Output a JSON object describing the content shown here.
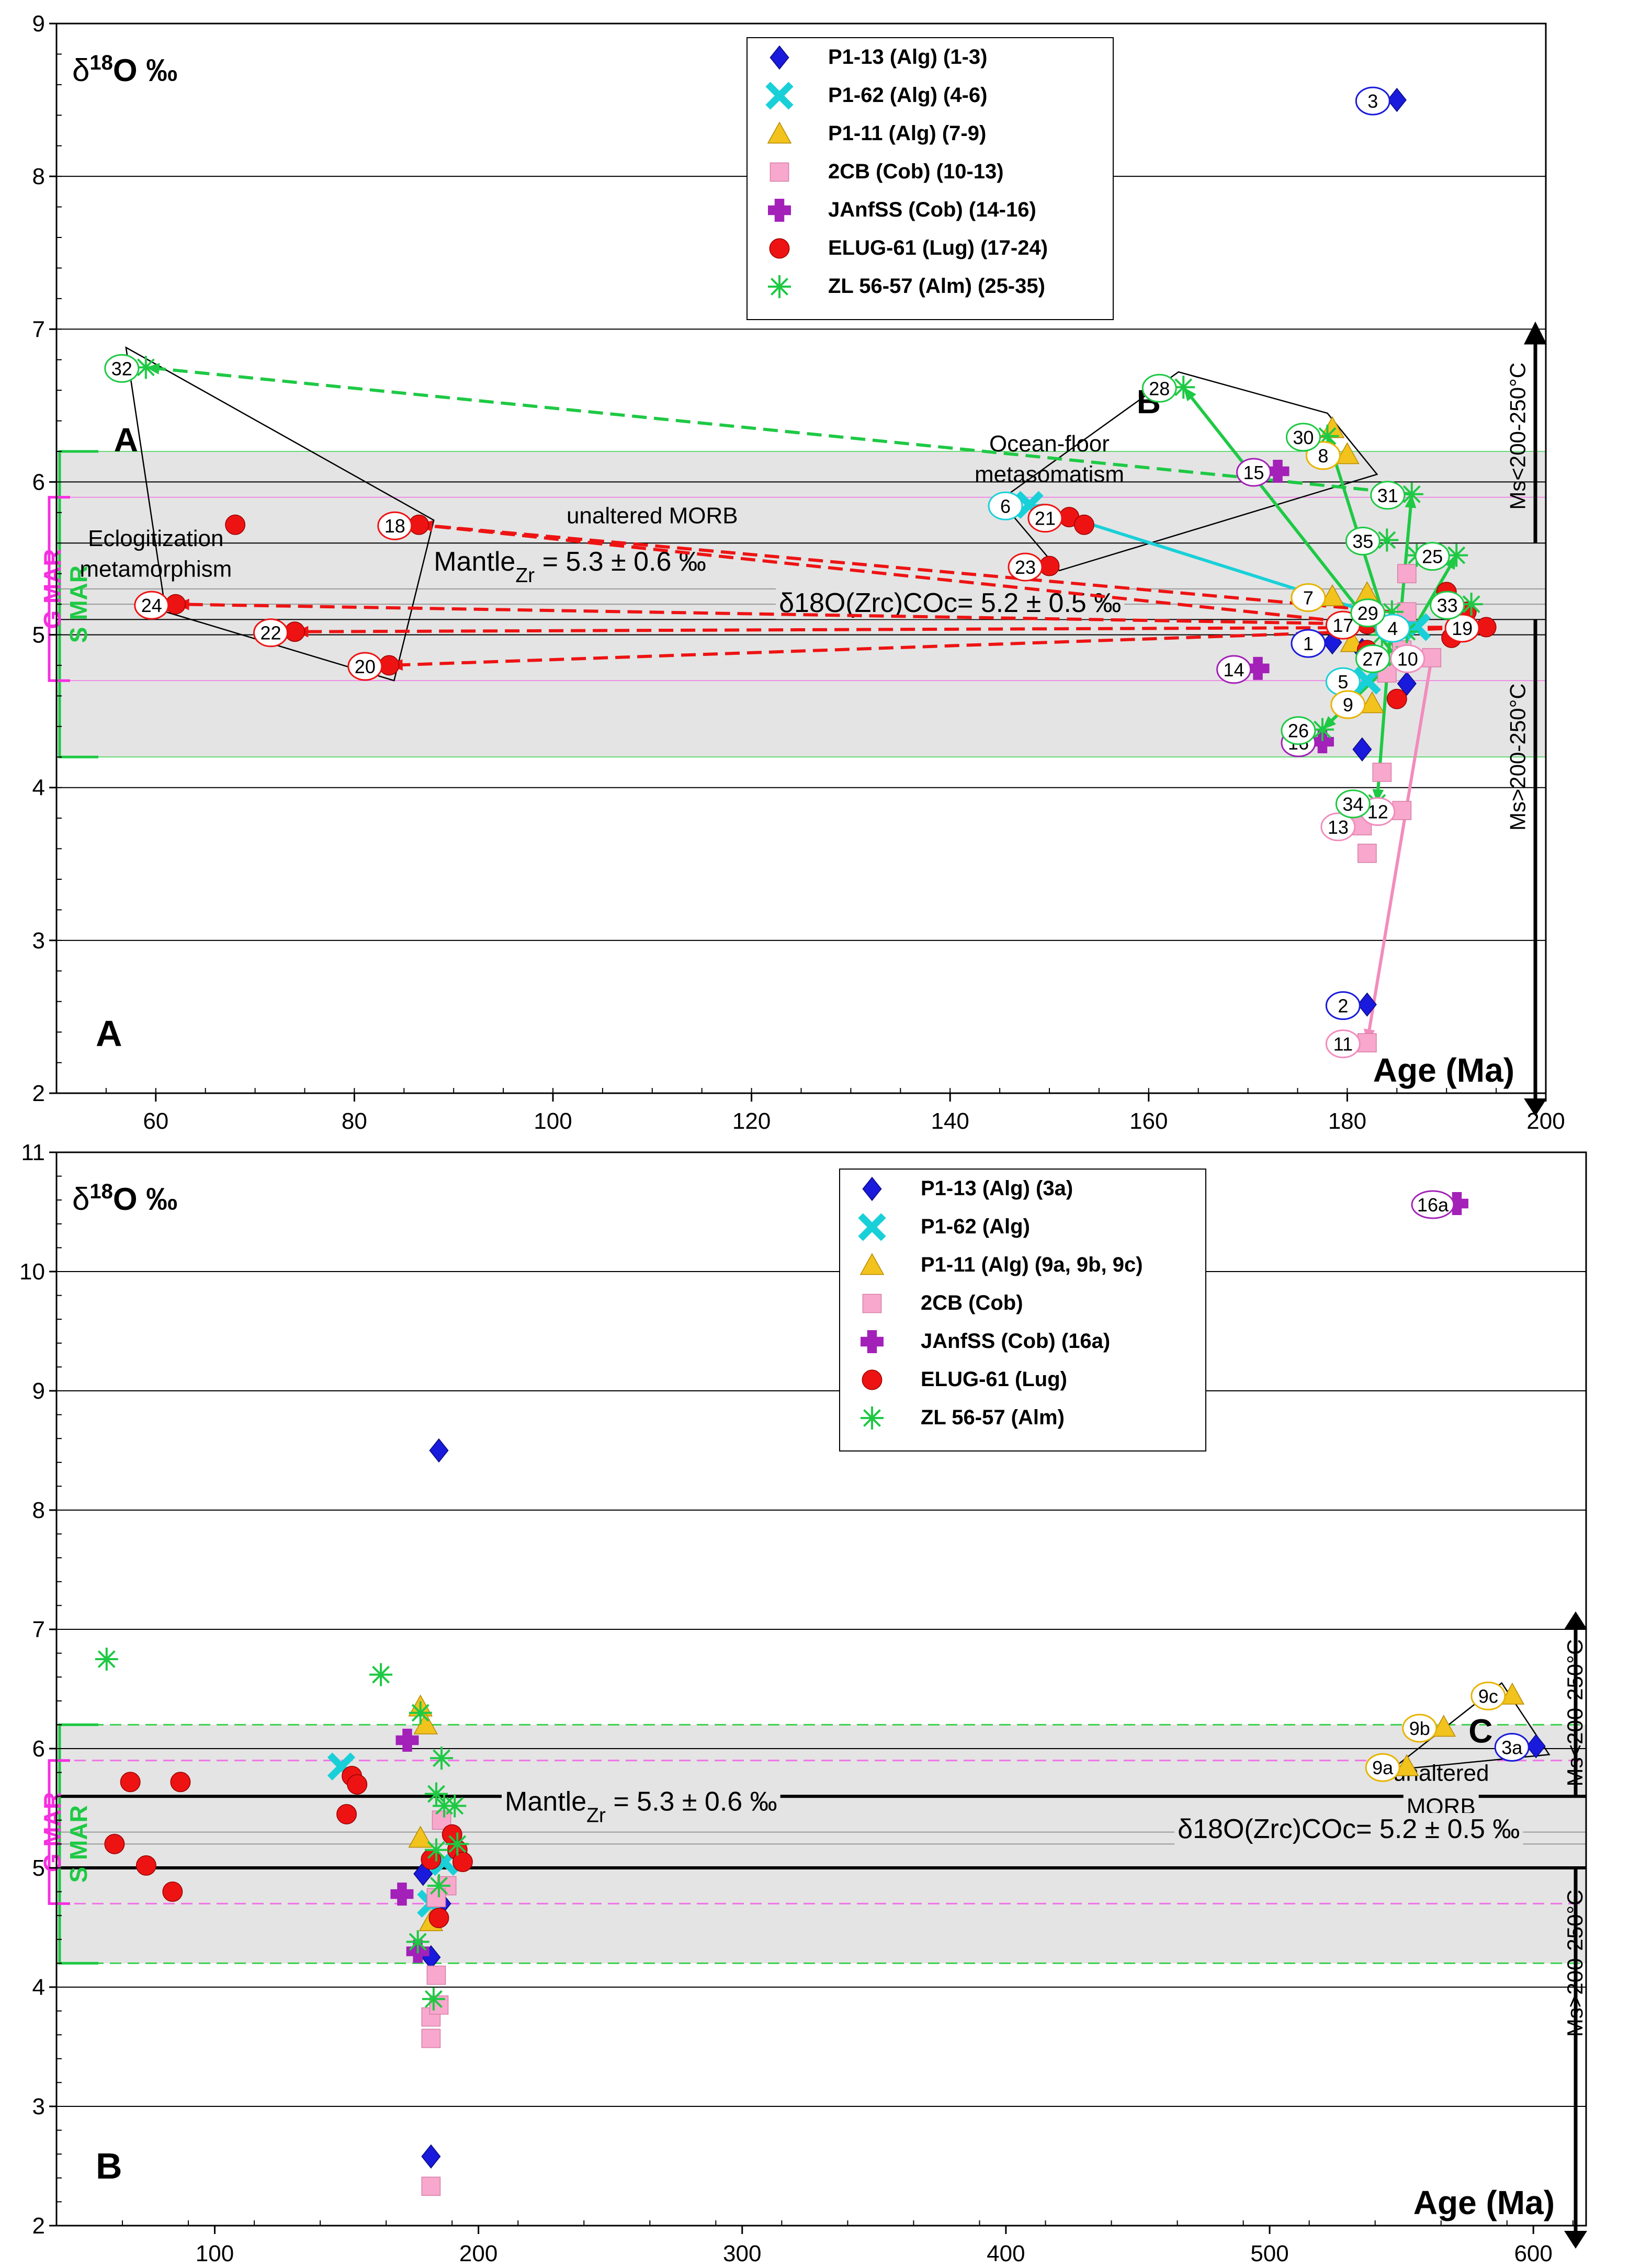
{
  "chart_data": [
    {
      "panel": "A",
      "type": "scatter",
      "panel_label": "A",
      "ylabel": "δ18O ‰",
      "xlabel": "Age (Ma)",
      "xlim": [
        50,
        200
      ],
      "ylim": [
        2,
        9
      ],
      "xticks": [
        "60",
        "80",
        "100",
        "120",
        "140",
        "160",
        "180",
        "200"
      ],
      "yticks": [
        "2",
        "3",
        "4",
        "5",
        "6",
        "7",
        "8",
        "9"
      ],
      "grid": "horizontal",
      "legend_position": "top-center",
      "series": [
        {
          "name": "P1-13 (Alg) (1-3)",
          "marker": "diamond",
          "color": "#1a1adc",
          "points": [
            {
              "x": 178.5,
              "y": 4.95,
              "label": "1"
            },
            {
              "x": 182,
              "y": 2.58,
              "label": "2"
            },
            {
              "x": 185,
              "y": 8.5,
              "label": "3"
            },
            {
              "x": 181.5,
              "y": 4.25
            },
            {
              "x": 186,
              "y": 4.68
            },
            {
              "x": 181.5,
              "y": 4.9
            }
          ]
        },
        {
          "name": "P1-62 (Alg) (4-6)",
          "marker": "x",
          "color": "#19d0d8",
          "points": [
            {
              "x": 187,
              "y": 5.05,
              "label": "4"
            },
            {
              "x": 182,
              "y": 4.7,
              "label": "5"
            },
            {
              "x": 148,
              "y": 5.85,
              "label": "6"
            }
          ]
        },
        {
          "name": "P1-11 (Alg) (7-9)",
          "marker": "triangle",
          "color": "#f2c21d",
          "points": [
            {
              "x": 178.5,
              "y": 5.25,
              "label": "7"
            },
            {
              "x": 180,
              "y": 6.18,
              "label": "8"
            },
            {
              "x": 182.5,
              "y": 4.55,
              "label": "9"
            },
            {
              "x": 178.5,
              "y": 6.35
            },
            {
              "x": 182,
              "y": 5.27
            },
            {
              "x": 180.5,
              "y": 4.95
            }
          ]
        },
        {
          "name": "2CB (Cob) (10-13)",
          "marker": "square",
          "color": "#f7a8cc",
          "points": [
            {
              "x": 188.5,
              "y": 4.85,
              "label": "10"
            },
            {
              "x": 182,
              "y": 2.33,
              "label": "11"
            },
            {
              "x": 185.5,
              "y": 3.85,
              "label": "12"
            },
            {
              "x": 181.5,
              "y": 3.75,
              "label": "13"
            },
            {
              "x": 183.5,
              "y": 4.1
            },
            {
              "x": 182,
              "y": 3.57
            },
            {
              "x": 184,
              "y": 4.75
            },
            {
              "x": 186,
              "y": 5.4
            },
            {
              "x": 185.5,
              "y": 4.9
            },
            {
              "x": 186,
              "y": 5.15
            }
          ]
        },
        {
          "name": "JAnfSS (Cob) (14-16)",
          "marker": "plus",
          "color": "#a321b8",
          "points": [
            {
              "x": 171,
              "y": 4.78,
              "label": "14"
            },
            {
              "x": 173,
              "y": 6.07,
              "label": "15"
            },
            {
              "x": 177.5,
              "y": 4.3,
              "label": "16"
            }
          ]
        },
        {
          "name": "ELUG-61 (Lug) (17-24)",
          "marker": "circle",
          "color": "#ee1313",
          "points": [
            {
              "x": 182,
              "y": 5.07,
              "label": "17"
            },
            {
              "x": 86.5,
              "y": 5.72,
              "label": "18"
            },
            {
              "x": 194,
              "y": 5.05,
              "label": "19"
            },
            {
              "x": 83.5,
              "y": 4.8,
              "label": "20"
            },
            {
              "x": 152,
              "y": 5.77,
              "label": "21"
            },
            {
              "x": 74,
              "y": 5.02,
              "label": "22"
            },
            {
              "x": 150,
              "y": 5.45,
              "label": "23"
            },
            {
              "x": 62,
              "y": 5.2,
              "label": "24"
            },
            {
              "x": 68,
              "y": 5.72
            },
            {
              "x": 153.5,
              "y": 5.72
            },
            {
              "x": 190,
              "y": 5.28
            },
            {
              "x": 192,
              "y": 5.15
            },
            {
              "x": 190.5,
              "y": 4.98
            },
            {
              "x": 185,
              "y": 4.58
            },
            {
              "x": 182,
              "y": 4.9
            }
          ]
        },
        {
          "name": "ZL 56-57 (Alm) (25-35)",
          "marker": "star",
          "color": "#1ec944",
          "points": [
            {
              "x": 191,
              "y": 5.52,
              "label": "25"
            },
            {
              "x": 177.5,
              "y": 4.38,
              "label": "26"
            },
            {
              "x": 185,
              "y": 4.85,
              "label": "27"
            },
            {
              "x": 163.5,
              "y": 6.62,
              "label": "28"
            },
            {
              "x": 184.5,
              "y": 5.15,
              "label": "29"
            },
            {
              "x": 178,
              "y": 6.3,
              "label": "30"
            },
            {
              "x": 186.5,
              "y": 5.92,
              "label": "31"
            },
            {
              "x": 59,
              "y": 6.75,
              "label": "32"
            },
            {
              "x": 192.5,
              "y": 5.2,
              "label": "33"
            },
            {
              "x": 183,
              "y": 3.9,
              "label": "34"
            },
            {
              "x": 184,
              "y": 5.62,
              "label": "35"
            },
            {
              "x": 187,
              "y": 5.52
            },
            {
              "x": 186,
              "y": 5.02
            },
            {
              "x": 183.5,
              "y": 5.0
            }
          ]
        }
      ],
      "annotations": [
        {
          "text": "A",
          "x": 57,
          "y": 6.2,
          "kind": "region-label"
        },
        {
          "text": "B",
          "x": 160,
          "y": 6.45,
          "kind": "region-label"
        },
        {
          "text": "Eclogitization",
          "x": 60,
          "y": 5.58
        },
        {
          "text": "metamorphism",
          "x": 60,
          "y": 5.38
        },
        {
          "text": "Ocean-floor",
          "x": 150,
          "y": 6.2
        },
        {
          "text": "metasomatism",
          "x": 150,
          "y": 6.0
        },
        {
          "text": "unaltered MORB",
          "x": 110,
          "y": 5.73
        },
        {
          "text": "Mantle",
          "sub": "Zr",
          "rest": " = 5.3 ± 0.6 ‰",
          "x": 88,
          "y": 5.42
        },
        {
          "text": "δ18O(Zrc)COc= 5.2 ± 0.5 ‰",
          "x": 140,
          "y": 5.15
        },
        {
          "text": "Ms<200-250°C",
          "x": 197.5,
          "y": 6.3,
          "rotated": true
        },
        {
          "text": "Ms>200-250°C",
          "x": 197.5,
          "y": 4.2,
          "rotated": true
        }
      ],
      "bands": {
        "s_mar": [
          4.2,
          6.2
        ],
        "g_mar": [
          4.7,
          5.9
        ],
        "morb": [
          5.1,
          5.6
        ],
        "mantle_center": 5.3,
        "coc_center": 5.2
      },
      "band_labels": {
        "s_mar": "S MAR",
        "g_mar": "G MAR"
      }
    },
    {
      "panel": "B",
      "type": "scatter",
      "panel_label": "B",
      "ylabel": "δ18O ‰",
      "xlabel": "Age (Ma)",
      "xlim": [
        40,
        620
      ],
      "ylim": [
        2,
        11
      ],
      "xticks": [
        "100",
        "200",
        "300",
        "400",
        "500",
        "600"
      ],
      "yticks": [
        "2",
        "3",
        "4",
        "5",
        "6",
        "7",
        "8",
        "9",
        "10",
        "11"
      ],
      "grid": "horizontal",
      "legend_position": "top-center",
      "series": [
        {
          "name": "P1-13 (Alg) (3a)",
          "marker": "diamond",
          "color": "#1a1adc",
          "points": [
            {
              "x": 601,
              "y": 6.02,
              "label": "3a"
            },
            {
              "x": 185,
              "y": 8.5
            },
            {
              "x": 182,
              "y": 2.58
            },
            {
              "x": 182,
              "y": 4.25
            },
            {
              "x": 186,
              "y": 4.7
            },
            {
              "x": 179,
              "y": 4.95
            }
          ]
        },
        {
          "name": "P1-62 (Alg)",
          "marker": "x",
          "color": "#19d0d8",
          "points": [
            {
              "x": 148,
              "y": 5.85
            },
            {
              "x": 182,
              "y": 4.7
            },
            {
              "x": 187,
              "y": 5.05
            }
          ]
        },
        {
          "name": "P1-11 (Alg) (9a, 9b, 9c)",
          "marker": "triangle",
          "color": "#f2c21d",
          "points": [
            {
              "x": 552,
              "y": 5.85,
              "label": "9a"
            },
            {
              "x": 566,
              "y": 6.18,
              "label": "9b"
            },
            {
              "x": 592,
              "y": 6.45,
              "label": "9c"
            },
            {
              "x": 178,
              "y": 6.35
            },
            {
              "x": 180,
              "y": 6.2
            },
            {
              "x": 178,
              "y": 5.25
            },
            {
              "x": 182,
              "y": 4.55
            }
          ]
        },
        {
          "name": "2CB (Cob)",
          "marker": "square",
          "color": "#f7a8cc",
          "points": [
            {
              "x": 182,
              "y": 2.33
            },
            {
              "x": 182,
              "y": 3.57
            },
            {
              "x": 182,
              "y": 3.75
            },
            {
              "x": 185,
              "y": 3.85
            },
            {
              "x": 184,
              "y": 4.1
            },
            {
              "x": 186,
              "y": 5.4
            },
            {
              "x": 188,
              "y": 4.85
            },
            {
              "x": 184,
              "y": 4.75
            }
          ]
        },
        {
          "name": "JAnfSS (Cob) (16a)",
          "marker": "plus",
          "color": "#a321b8",
          "points": [
            {
              "x": 571,
              "y": 10.57,
              "label": "16a"
            },
            {
              "x": 171,
              "y": 4.78
            },
            {
              "x": 173,
              "y": 6.07
            },
            {
              "x": 177,
              "y": 4.3
            }
          ]
        },
        {
          "name": "ELUG-61 (Lug)",
          "marker": "circle",
          "color": "#ee1313",
          "points": [
            {
              "x": 62,
              "y": 5.2
            },
            {
              "x": 68,
              "y": 5.72
            },
            {
              "x": 74,
              "y": 5.02
            },
            {
              "x": 84,
              "y": 4.8
            },
            {
              "x": 87,
              "y": 5.72
            },
            {
              "x": 150,
              "y": 5.45
            },
            {
              "x": 152,
              "y": 5.77
            },
            {
              "x": 154,
              "y": 5.7
            },
            {
              "x": 182,
              "y": 5.07
            },
            {
              "x": 185,
              "y": 4.58
            },
            {
              "x": 190,
              "y": 5.28
            },
            {
              "x": 192,
              "y": 5.15
            },
            {
              "x": 194,
              "y": 5.05
            }
          ]
        },
        {
          "name": "ZL 56-57 (Alm)",
          "marker": "star",
          "color": "#1ec944",
          "points": [
            {
              "x": 59,
              "y": 6.75
            },
            {
              "x": 163,
              "y": 6.62
            },
            {
              "x": 178,
              "y": 6.3
            },
            {
              "x": 186,
              "y": 5.92
            },
            {
              "x": 177,
              "y": 4.38
            },
            {
              "x": 183,
              "y": 3.9
            },
            {
              "x": 184,
              "y": 5.62
            },
            {
              "x": 187,
              "y": 5.52
            },
            {
              "x": 191,
              "y": 5.52
            },
            {
              "x": 192,
              "y": 5.2
            },
            {
              "x": 185,
              "y": 4.85
            },
            {
              "x": 184,
              "y": 5.15
            }
          ]
        }
      ],
      "annotations": [
        {
          "text": "C",
          "x": 580,
          "y": 6.05,
          "kind": "region-label"
        },
        {
          "text": "unaltered",
          "x": 565,
          "y": 5.73
        },
        {
          "text": "MORB",
          "x": 565,
          "y": 5.45
        },
        {
          "text": "Mantle",
          "sub": "Zr",
          "rest": " = 5.3 ± 0.6 ‰",
          "x": 210,
          "y": 5.48
        },
        {
          "text": "δ18O(Zrc)COc= 5.2 ± 0.5 ‰",
          "x": 530,
          "y": 5.25
        },
        {
          "text": "Ms<200-250°C",
          "x": 617,
          "y": 6.3,
          "rotated": true
        },
        {
          "text": "Ms>200-250°C",
          "x": 617,
          "y": 4.2,
          "rotated": true
        }
      ],
      "bands": {
        "s_mar": [
          4.2,
          6.2
        ],
        "g_mar": [
          4.7,
          5.9
        ],
        "morb": [
          5.0,
          5.6
        ],
        "mantle_center": 5.3,
        "coc_center": 5.2
      },
      "band_labels": {
        "s_mar": "S MAR",
        "g_mar": "G MAR"
      }
    }
  ]
}
